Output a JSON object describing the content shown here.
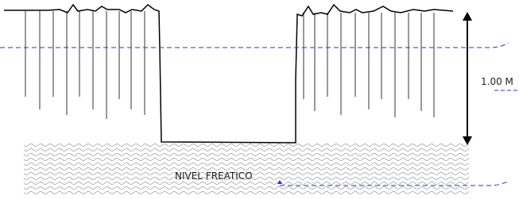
{
  "labels": {
    "depth": "1.00 M",
    "water_table": "NIVEL FREATICO"
  }
}
